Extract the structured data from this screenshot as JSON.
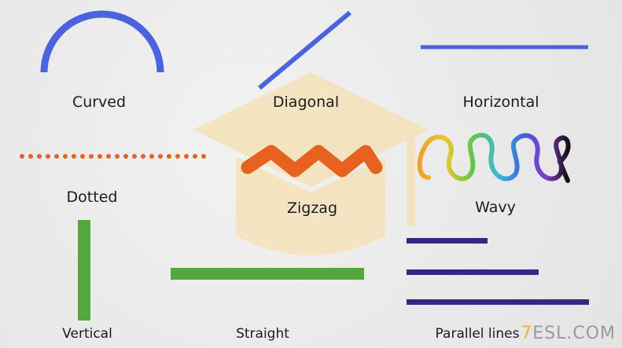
{
  "labels": {
    "curved": "Curved",
    "diagonal": "Diagonal",
    "horizontal": "Horizontal",
    "dotted": "Dotted",
    "zigzag": "Zigzag",
    "wavy": "Wavy",
    "vertical": "Vertical",
    "straight": "Straight",
    "parallel": "Parallel lines"
  },
  "watermark": {
    "accent": "7",
    "text": "ESL.COM"
  },
  "colors": {
    "blue": "#4a63e0",
    "orange": "#e8621f",
    "green": "#55a63f",
    "purple": "#3a2580",
    "watermark_shape": "#f5e2b8",
    "wavy_gradient": [
      "#f2a12a",
      "#e8c92a",
      "#5fc64a",
      "#3ab7d9",
      "#3a5fe0",
      "#8a3ac9",
      "#111111"
    ]
  },
  "icons": {
    "background_watermark": "graduation-cap-icon"
  }
}
